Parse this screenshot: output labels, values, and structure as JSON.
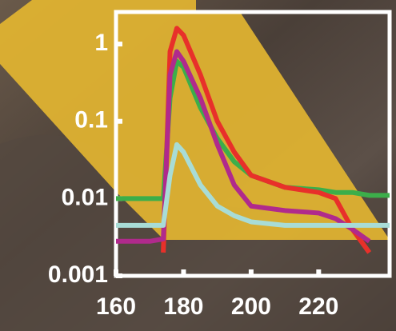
{
  "chart_data": {
    "type": "line",
    "yscale": "log",
    "x": [
      160,
      170,
      174,
      176,
      178,
      180,
      185,
      190,
      195,
      200,
      210,
      220,
      225,
      230,
      235,
      241
    ],
    "series": [
      {
        "color": "#3cae4a",
        "values": [
          0.01,
          0.01,
          0.01,
          0.2,
          0.6,
          0.5,
          0.15,
          0.06,
          0.03,
          0.02,
          0.014,
          0.013,
          0.012,
          0.012,
          0.011,
          0.011
        ]
      },
      {
        "color": "#e8302a",
        "values": [
          null,
          null,
          0.002,
          0.8,
          1.6,
          1.3,
          0.4,
          0.1,
          0.04,
          0.02,
          0.014,
          0.012,
          0.01,
          0.004,
          0.002,
          null
        ]
      },
      {
        "color": "#b02a8c",
        "values": [
          0.0028,
          0.0028,
          0.003,
          0.4,
          0.8,
          0.6,
          0.2,
          0.05,
          0.015,
          0.008,
          0.007,
          0.0065,
          0.0055,
          0.004,
          0.0028,
          null
        ]
      },
      {
        "color": "#a8dcd6",
        "values": [
          0.0045,
          0.0045,
          0.0045,
          0.02,
          0.05,
          0.04,
          0.015,
          0.008,
          0.006,
          0.005,
          0.0045,
          0.0045,
          0.0045,
          0.0045,
          0.0045,
          0.0045
        ]
      }
    ],
    "xlim": [
      160,
      241
    ],
    "xticks": [
      160,
      180,
      200,
      220
    ],
    "ylim": [
      0.001,
      2.6
    ],
    "yticks": [
      1,
      0.1,
      0.01,
      0.001
    ]
  }
}
